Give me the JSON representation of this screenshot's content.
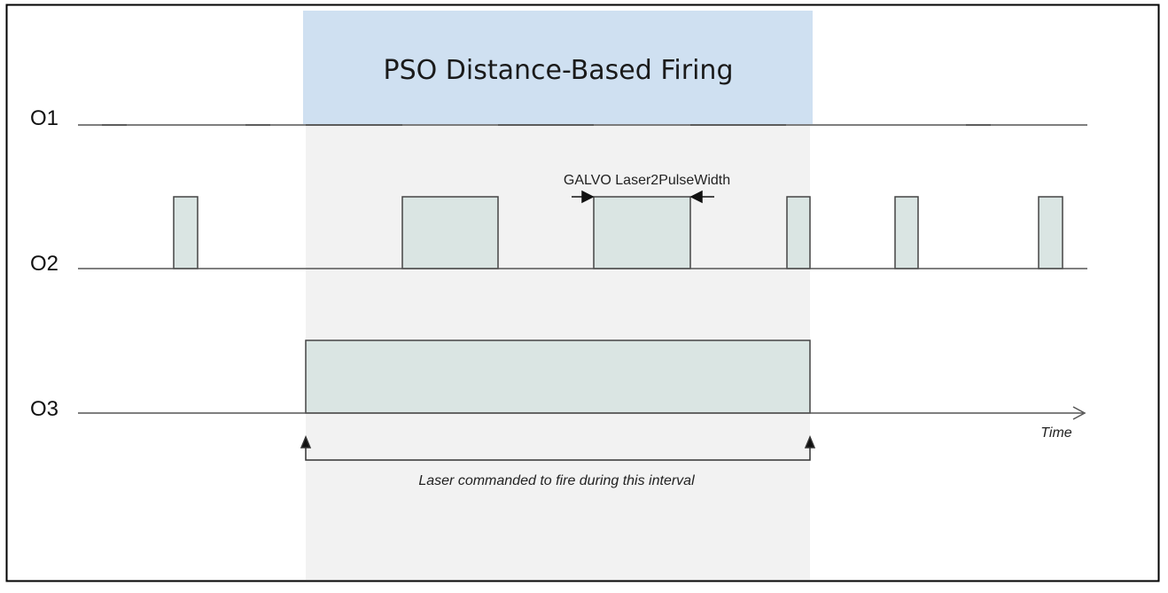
{
  "banner": {
    "title": "PSO Distance-Based Firing",
    "color": "#cfe0f1"
  },
  "signals": [
    {
      "label": "O1"
    },
    {
      "label": "O2"
    },
    {
      "label": "O3"
    }
  ],
  "annotations": {
    "pulse_width_label": "GALVO Laser2PulseWidth",
    "interval_label": "Laser commanded to fire during this interval",
    "time_label": "Time"
  },
  "colors": {
    "pulse_fill": "#dae5e3",
    "interval_shade": "#f2f2f2",
    "line": "#555555",
    "frame": "#000000"
  }
}
